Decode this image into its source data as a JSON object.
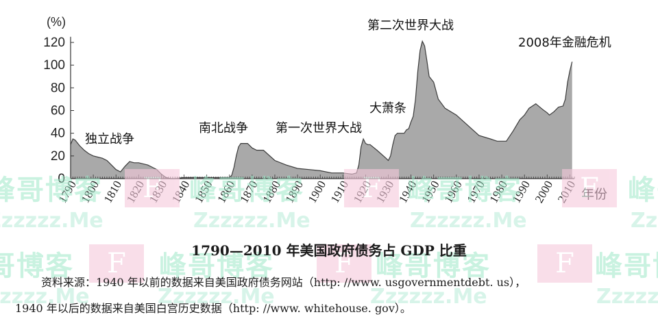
{
  "watermark": {
    "cn_text": "峰哥博客",
    "url_text": "Zzzzzz.Me",
    "box_text": "F"
  },
  "caption": "1790—2010 年美国政府债务占 GDP 比重",
  "source_line1": "资料来源：1940 年以前的数据来自美国政府债务网站（http: //www. usgovernmentdebt. us），",
  "source_line2": "1940 年以后的数据来自美国白宫历史数据（http: //www. whitehouse. gov）。",
  "chart_data": {
    "type": "area",
    "title": "",
    "ylabel": "(%)",
    "xlabel": "年份",
    "ylim": [
      0,
      125
    ],
    "xlim": [
      1790,
      2012
    ],
    "yticks": [
      0,
      20,
      40,
      60,
      80,
      100,
      120
    ],
    "xticks": [
      1790,
      1800,
      1810,
      1820,
      1830,
      1840,
      1850,
      1860,
      1870,
      1880,
      1890,
      1900,
      1910,
      1920,
      1930,
      1940,
      1950,
      1960,
      1970,
      1980,
      1990,
      2000,
      2010
    ],
    "fill_color": "#a9a9a9",
    "line_color": "#3a3a3a",
    "grid": false,
    "x": [
      1790,
      1791,
      1792,
      1794,
      1796,
      1798,
      1800,
      1802,
      1804,
      1806,
      1808,
      1810,
      1812,
      1814,
      1816,
      1818,
      1820,
      1822,
      1824,
      1826,
      1828,
      1830,
      1832,
      1834,
      1836,
      1840,
      1845,
      1850,
      1855,
      1860,
      1861,
      1862,
      1863,
      1864,
      1865,
      1866,
      1868,
      1870,
      1872,
      1875,
      1880,
      1885,
      1890,
      1895,
      1900,
      1905,
      1910,
      1914,
      1916,
      1917,
      1918,
      1919,
      1920,
      1921,
      1922,
      1925,
      1929,
      1930,
      1931,
      1932,
      1933,
      1934,
      1935,
      1936,
      1937,
      1938,
      1939,
      1940,
      1941,
      1942,
      1943,
      1944,
      1945,
      1946,
      1947,
      1948,
      1950,
      1952,
      1955,
      1960,
      1965,
      1970,
      1975,
      1978,
      1980,
      1982,
      1985,
      1988,
      1990,
      1992,
      1995,
      1998,
      2000,
      2001,
      2003,
      2005,
      2007,
      2008,
      2009,
      2010,
      2011
    ],
    "y": [
      30,
      35,
      34,
      29,
      25,
      22,
      20,
      19,
      18,
      16,
      12,
      8,
      6,
      11,
      15,
      14,
      14,
      13,
      12,
      10,
      8,
      4,
      1,
      0,
      0,
      1,
      1,
      1,
      1,
      1,
      3,
      10,
      20,
      28,
      31,
      31,
      31,
      27,
      25,
      25,
      16,
      12,
      9,
      8,
      7,
      5,
      5,
      4,
      5,
      12,
      28,
      35,
      31,
      30,
      30,
      25,
      18,
      16,
      20,
      30,
      38,
      40,
      40,
      40,
      40,
      43,
      44,
      50,
      55,
      70,
      95,
      113,
      121,
      117,
      104,
      90,
      85,
      70,
      62,
      56,
      47,
      38,
      35,
      33,
      33,
      33,
      42,
      52,
      56,
      62,
      66,
      61,
      58,
      56,
      59,
      63,
      64,
      70,
      85,
      95,
      103
    ]
  },
  "annotations": [
    {
      "text": "独立战争"
    },
    {
      "text": "南北战争"
    },
    {
      "text": "第一次世界大战"
    },
    {
      "text": "大萧条"
    },
    {
      "text": "第二次世界大战"
    },
    {
      "text": "2008年金融危机"
    }
  ]
}
